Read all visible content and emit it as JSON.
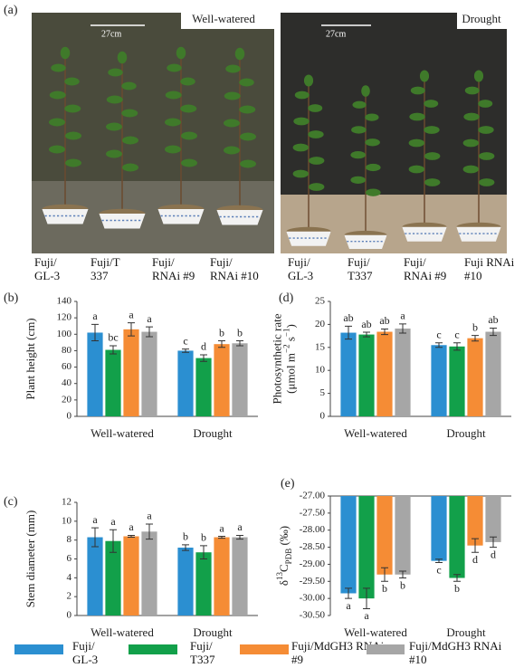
{
  "figure": {
    "panel_a": {
      "label": "(a)",
      "photos": [
        {
          "condition": "Well-watered",
          "scale": "27cm",
          "plants": [
            "Fuji/ GL-3",
            "Fuji/T 337",
            "Fuji/ RNAi #9",
            "Fuji/ RNAi #10"
          ]
        },
        {
          "condition": "Drought",
          "scale": "27cm",
          "plants": [
            "Fuji/ GL-3",
            "Fuji/ T337",
            "Fuji/ RNAi #9",
            "Fuji RNAi #10"
          ]
        }
      ]
    }
  },
  "chart_data": [
    {
      "type": "bar",
      "panel": "(b)",
      "ylabel": [
        [
          {
            "text": "Plant height (cm)"
          }
        ]
      ],
      "categories": [
        "Well-watered",
        "Drought"
      ],
      "ylim": [
        0,
        140
      ],
      "yticks": [
        0,
        20,
        40,
        60,
        80,
        100,
        120,
        140
      ],
      "series": [
        {
          "name": "Fuji/ GL-3",
          "color": "#2b8fd1",
          "values": [
            102,
            80
          ],
          "errors": [
            10,
            2
          ],
          "letters": [
            "a",
            "c"
          ]
        },
        {
          "name": "Fuji/ T337",
          "color": "#12a04a",
          "values": [
            81,
            71
          ],
          "errors": [
            5,
            4
          ],
          "letters": [
            "bc",
            "d"
          ]
        },
        {
          "name": "Fuji/MdGH3 RNAi #9",
          "color": "#f58c35",
          "values": [
            106,
            88
          ],
          "errors": [
            8,
            4
          ],
          "letters": [
            "a",
            "b"
          ]
        },
        {
          "name": "Fuji/MdGH3 RNAi #10",
          "color": "#a6a6a6",
          "values": [
            103,
            89
          ],
          "errors": [
            6,
            3
          ],
          "letters": [
            "a",
            "b"
          ]
        }
      ]
    },
    {
      "type": "bar",
      "panel": "(d)",
      "ylabel": [
        [
          {
            "text": "Photosynthetic rate"
          }
        ],
        [
          {
            "text": "(μmol m"
          },
          {
            "text": "−2",
            "script": "sup"
          },
          {
            "text": " s"
          },
          {
            "text": "−1",
            "script": "sup"
          },
          {
            "text": ")"
          }
        ]
      ],
      "categories": [
        "Well-watered",
        "Drought"
      ],
      "ylim": [
        0,
        25
      ],
      "yticks": [
        0,
        5,
        10,
        15,
        20,
        25
      ],
      "series": [
        {
          "color": "#2b8fd1",
          "values": [
            18.2,
            15.5
          ],
          "errors": [
            1.4,
            0.5
          ],
          "letters": [
            "ab",
            "c"
          ]
        },
        {
          "color": "#12a04a",
          "values": [
            17.8,
            15.2
          ],
          "errors": [
            0.5,
            0.8
          ],
          "letters": [
            "ab",
            "c"
          ]
        },
        {
          "color": "#f58c35",
          "values": [
            18.4,
            17.0
          ],
          "errors": [
            0.6,
            0.6
          ],
          "letters": [
            "ab",
            "b"
          ]
        },
        {
          "color": "#a6a6a6",
          "values": [
            19.1,
            18.4
          ],
          "errors": [
            1.0,
            0.8
          ],
          "letters": [
            "a",
            "ab"
          ]
        }
      ]
    },
    {
      "type": "bar",
      "panel": "(c)",
      "ylabel": [
        [
          {
            "text": "Stem diameter (mm)"
          }
        ]
      ],
      "categories": [
        "Well-watered",
        "Drought"
      ],
      "ylim": [
        0,
        12
      ],
      "yticks": [
        0,
        2,
        4,
        6,
        8,
        10,
        12
      ],
      "series": [
        {
          "color": "#2b8fd1",
          "values": [
            8.3,
            7.2
          ],
          "errors": [
            1.0,
            0.3
          ],
          "letters": [
            "a",
            "b"
          ]
        },
        {
          "color": "#12a04a",
          "values": [
            7.9,
            6.7
          ],
          "errors": [
            1.2,
            0.7
          ],
          "letters": [
            "a",
            "b"
          ]
        },
        {
          "color": "#f58c35",
          "values": [
            8.4,
            8.3
          ],
          "errors": [
            0.1,
            0.1
          ],
          "letters": [
            "a",
            "a"
          ]
        },
        {
          "color": "#a6a6a6",
          "values": [
            8.9,
            8.3
          ],
          "errors": [
            0.8,
            0.2
          ],
          "letters": [
            "a",
            "a"
          ]
        }
      ]
    },
    {
      "type": "bar",
      "panel": "(e)",
      "ylabel": [
        [
          {
            "text": "δ"
          },
          {
            "text": "13",
            "script": "sup"
          },
          {
            "text": "C"
          },
          {
            "text": "PDB",
            "script": "sub"
          },
          {
            "text": " (‰)"
          }
        ]
      ],
      "categories": [
        "Well-watered",
        "Drought"
      ],
      "ylim": [
        -30.5,
        -27
      ],
      "yticks": [
        {
          "value": -30.5,
          "label": "-30.50"
        },
        {
          "value": -30,
          "label": "-30.00"
        },
        {
          "value": -29.5,
          "label": "-29.50"
        },
        {
          "value": -29,
          "label": "-29.00"
        },
        {
          "value": -28.5,
          "label": "-28.50"
        },
        {
          "value": -28,
          "label": "-28.00"
        },
        {
          "value": -27.5,
          "label": "-27.50"
        },
        {
          "value": -27,
          "label": "-27.00"
        }
      ],
      "series": [
        {
          "color": "#2b8fd1",
          "values": [
            -29.85,
            -28.9
          ],
          "errors": [
            0.15,
            0.05
          ],
          "letters": [
            "a",
            "c"
          ]
        },
        {
          "color": "#12a04a",
          "values": [
            -30.0,
            -29.4
          ],
          "errors": [
            0.3,
            0.1
          ],
          "letters": [
            "a",
            "b"
          ]
        },
        {
          "color": "#f58c35",
          "values": [
            -29.3,
            -28.45
          ],
          "errors": [
            0.2,
            0.2
          ],
          "letters": [
            "b",
            "d"
          ]
        },
        {
          "color": "#a6a6a6",
          "values": [
            -29.3,
            -28.35
          ],
          "errors": [
            0.1,
            0.15
          ],
          "letters": [
            "b",
            "d"
          ]
        }
      ]
    }
  ]
}
